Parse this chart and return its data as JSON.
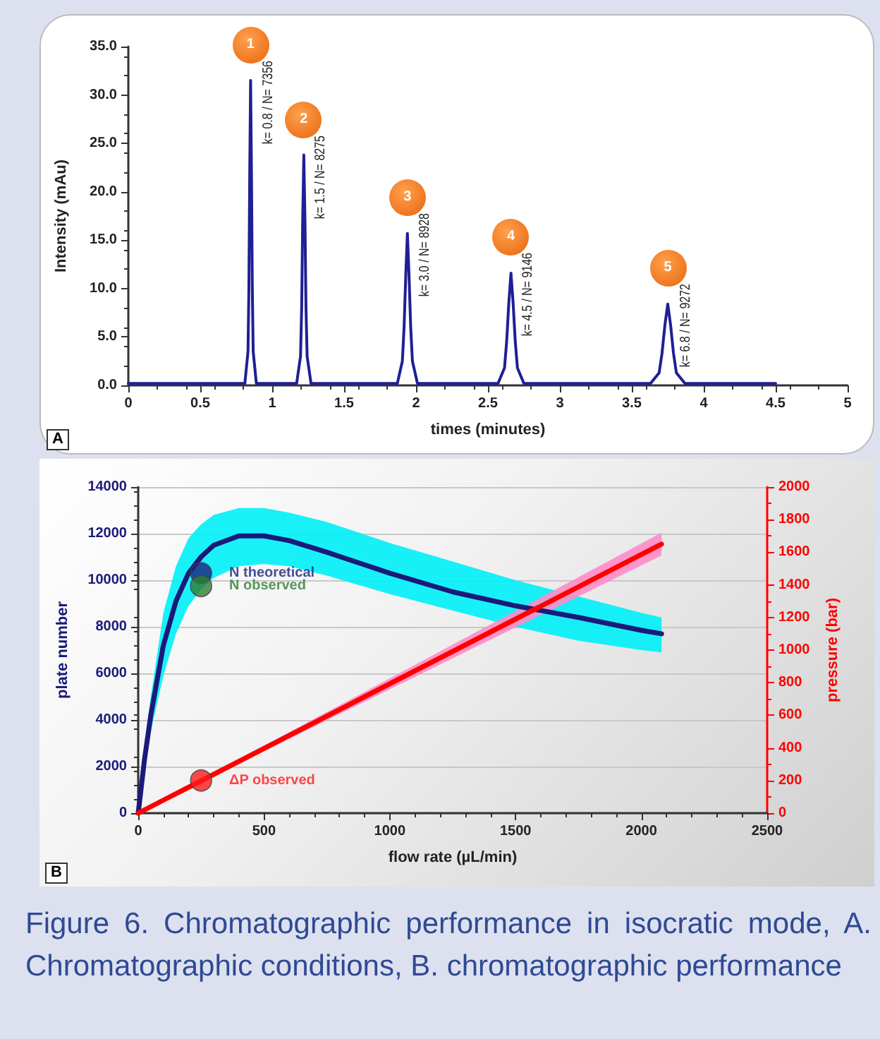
{
  "chart_data": [
    {
      "type": "line",
      "xlabel": "times (minutes)",
      "ylabel": "Intensity (mAu)",
      "xlim": [
        0,
        5
      ],
      "xticks": [
        0,
        0.5,
        1,
        1.5,
        2,
        2.5,
        3,
        3.5,
        4,
        4.5,
        5
      ],
      "ylim": [
        0,
        35
      ],
      "yticks": [
        {
          "value": 0,
          "label": "0.0"
        },
        {
          "value": 5,
          "label": "5.0"
        },
        {
          "value": 10,
          "label": "10.0"
        },
        {
          "value": 15,
          "label": "15.0"
        },
        {
          "value": 20,
          "label": "20.0"
        },
        {
          "value": 25,
          "label": "25.0"
        },
        {
          "value": 30,
          "label": "30.0"
        },
        {
          "value": 35,
          "label": "35.0"
        }
      ],
      "marker": "none",
      "series": [
        {
          "color": "#1f1f96",
          "x": [
            0,
            0.81,
            0.832,
            0.838,
            0.844,
            0.85,
            0.856,
            0.862,
            0.868,
            0.89,
            1.17,
            1.197,
            1.205,
            1.212,
            1.22,
            1.228,
            1.235,
            1.243,
            1.27,
            1.87,
            1.905,
            1.917,
            1.929,
            1.94,
            1.951,
            1.963,
            1.975,
            2.01,
            2.57,
            2.615,
            2.63,
            2.645,
            2.66,
            2.675,
            2.69,
            2.705,
            2.75,
            3.63,
            3.69,
            3.71,
            3.73,
            3.75,
            3.77,
            3.79,
            3.81,
            3.87,
            4.5
          ],
          "values": [
            0.2,
            0.2,
            3.5,
            10,
            22,
            31.5,
            22,
            10,
            3.5,
            0.2,
            0.2,
            3,
            8,
            17,
            23.8,
            17,
            8,
            3,
            0.2,
            0.2,
            2.5,
            6,
            11.5,
            15.7,
            11.5,
            6,
            2.5,
            0.2,
            0.2,
            1.8,
            4.5,
            8.5,
            11.6,
            8.5,
            4.5,
            1.8,
            0.2,
            0.2,
            1.3,
            3.3,
            6.2,
            8.4,
            6.2,
            3.3,
            1.3,
            0.2,
            0.2
          ]
        }
      ],
      "annotations": [
        "A",
        {
          "text": "1",
          "x": 0.85,
          "y": 31.5
        },
        {
          "text": "k= 0.8 / N= 7356",
          "x": 0.85,
          "y": 31.5
        },
        {
          "text": "2",
          "x": 1.22,
          "y": 23.8
        },
        {
          "text": "k= 1.5 / N= 8275",
          "x": 1.22,
          "y": 23.8
        },
        {
          "text": "3",
          "x": 1.94,
          "y": 15.7
        },
        {
          "text": "k= 3.0 / N= 8928",
          "x": 1.94,
          "y": 15.7
        },
        {
          "text": "4",
          "x": 2.66,
          "y": 11.6
        },
        {
          "text": "k= 4.5 / N= 9146",
          "x": 2.66,
          "y": 11.6
        },
        {
          "text": "5",
          "x": 3.75,
          "y": 8.4
        },
        {
          "text": "k= 6.8 / N= 9272",
          "x": 3.75,
          "y": 8.4
        }
      ]
    },
    {
      "type": "line",
      "xlabel": "flow rate (µL/min)",
      "ylabel": "plate number",
      "y2label": "pressure (bar)",
      "xlim": [
        0,
        2500
      ],
      "xticks": [
        0,
        500,
        1000,
        1500,
        2000,
        2500
      ],
      "ylim": [
        0,
        14000
      ],
      "yticks": [
        0,
        2000,
        4000,
        6000,
        8000,
        10000,
        12000,
        14000
      ],
      "y2lim": [
        0,
        2000
      ],
      "y2ticks": [
        0,
        200,
        400,
        600,
        800,
        1000,
        1200,
        1400,
        1600,
        1800,
        2000
      ],
      "grid": "y",
      "marker": "none",
      "series": [
        {
          "color": "#1a1a7a",
          "x": [
            0,
            25,
            50,
            100,
            150,
            200,
            250,
            300,
            400,
            500,
            600,
            750,
            1000,
            1250,
            1500,
            1750,
            2000,
            2080
          ],
          "values": [
            0,
            2300,
            4200,
            7200,
            9100,
            10300,
            11000,
            11500,
            11900,
            11900,
            11700,
            11200,
            10300,
            9500,
            8900,
            8400,
            7850,
            7700
          ],
          "upper": [
            0,
            2800,
            5000,
            8600,
            10600,
            11800,
            12400,
            12800,
            13100,
            13100,
            12900,
            12500,
            11600,
            10800,
            10000,
            9300,
            8600,
            8400
          ],
          "lower": [
            0,
            1800,
            3500,
            5900,
            7700,
            8900,
            9600,
            10100,
            10600,
            10700,
            10600,
            10200,
            9400,
            8700,
            8000,
            7400,
            7000,
            6900
          ]
        },
        {
          "color": "#ff0000",
          "axis": "y2",
          "x": [
            0,
            2080
          ],
          "values": [
            0,
            1650
          ],
          "upper": [
            0,
            1720
          ],
          "lower": [
            0,
            1580
          ]
        },
        {
          "type": "scatter",
          "name": "N theoretical",
          "color": "#1a237e",
          "marker": "circle",
          "x": [
            250
          ],
          "values": [
            10300
          ]
        },
        {
          "type": "scatter",
          "name": "N observed",
          "color": "#2e7d32",
          "marker": "circle",
          "x": [
            250
          ],
          "values": [
            9750
          ]
        },
        {
          "type": "scatter",
          "name": "ΔP observed",
          "color": "#ff1a1a",
          "marker": "circle",
          "axis": "y2",
          "x": [
            250
          ],
          "values": [
            200
          ]
        }
      ],
      "annotations": [
        "B",
        "Figure 6. Chromatographic performance in isocratic mode, A. Chromatographic conditions, B. chromatographic performance"
      ]
    }
  ]
}
